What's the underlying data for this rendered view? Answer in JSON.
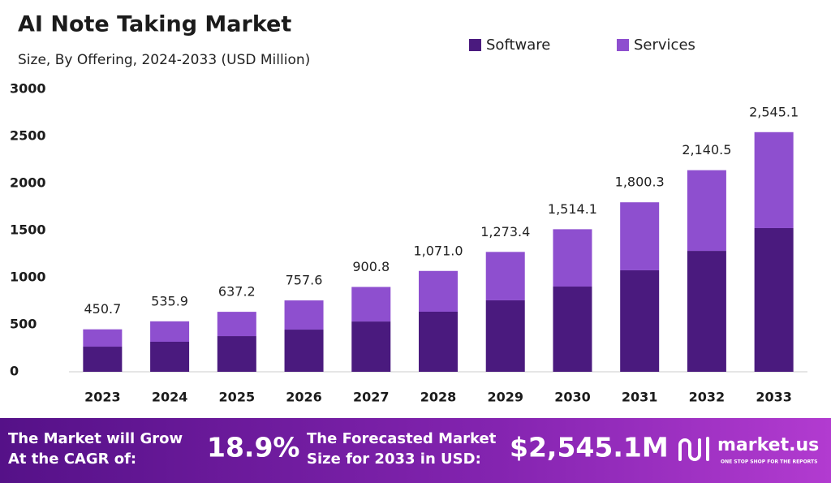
{
  "chart_data": {
    "type": "stacked_bar",
    "title": "AI Note Taking Market",
    "subtitle": "Size, By Offering, 2024-2033 (USD Million)",
    "categories": [
      "2023",
      "2024",
      "2025",
      "2026",
      "2027",
      "2028",
      "2029",
      "2030",
      "2031",
      "2032",
      "2033"
    ],
    "series": [
      {
        "name": "Software",
        "color": "#4a1a7e",
        "values": [
          267,
          319,
          379,
          448,
          534,
          638,
          759,
          905,
          1078,
          1284,
          1526
        ]
      },
      {
        "name": "Services",
        "color": "#8e4fcf",
        "values": [
          184,
          217,
          258,
          310,
          367,
          433,
          514,
          609,
          722,
          857,
          1019
        ]
      }
    ],
    "totals": [
      450.7,
      535.9,
      637.2,
      757.6,
      900.8,
      1071.0,
      1273.4,
      1514.1,
      1800.3,
      2140.5,
      2545.1
    ],
    "total_labels": [
      "450.7",
      "535.9",
      "637.2",
      "757.6",
      "900.8",
      "1,071.0",
      "1,273.4",
      "1,514.1",
      "1,800.3",
      "2,140.5",
      "2,545.1"
    ],
    "ylim": [
      0,
      3000
    ],
    "yticks": [
      0,
      500,
      1000,
      1500,
      2000,
      2500,
      3000
    ],
    "grid": false,
    "legend": "top-right"
  },
  "footer": {
    "cagr_text": [
      "The Market will Grow",
      "At the CAGR of:"
    ],
    "cagr": "18.9%",
    "forecast_text": [
      "The Forecasted Market",
      "Size for 2033 in USD:"
    ],
    "forecast": "$2,545.1M",
    "brand": "market.us",
    "tagline": "ONE STOP SHOP FOR THE REPORTS"
  }
}
